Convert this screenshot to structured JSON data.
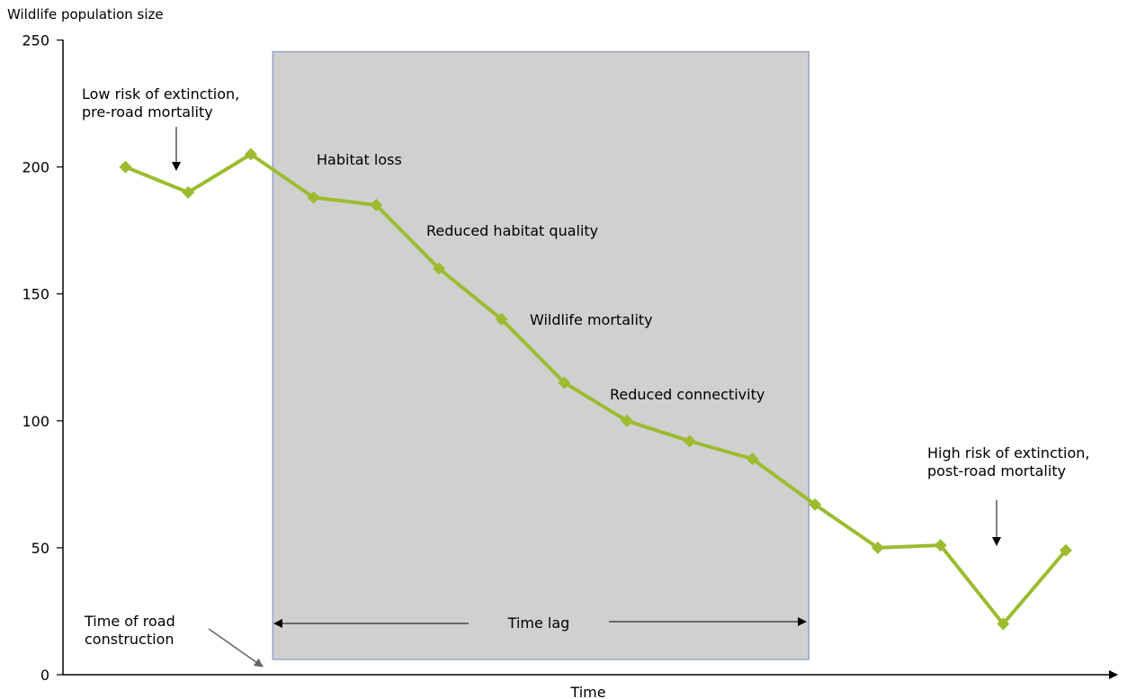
{
  "chart_data": {
    "type": "line",
    "ylabel": "Wildlife population size",
    "xlabel": "Time",
    "ylim": [
      0,
      250
    ],
    "yticks": [
      0,
      50,
      100,
      150,
      200,
      250
    ],
    "series": [
      {
        "color": "#9dbb2f",
        "values": [
          200,
          190,
          205,
          188,
          185,
          160,
          140,
          115,
          100,
          92,
          85,
          67,
          50,
          51,
          20,
          49
        ]
      }
    ],
    "shaded_region": {
      "start_index": 2.35,
      "end_index": 10.9,
      "color": "#d0d0d0"
    },
    "annotations": {
      "low_risk": [
        "Low risk of extinction,",
        "pre-road mortality"
      ],
      "high_risk": [
        "High risk of extinction,",
        "post-road mortality"
      ],
      "habitat_loss": "Habitat loss",
      "reduced_quality": "Reduced habitat quality",
      "wildlife_mortality": "Wildlife mortality",
      "reduced_connectivity": "Reduced connectivity",
      "time_lag": "Time lag",
      "road_construction": [
        "Time of road",
        "construction"
      ]
    }
  }
}
